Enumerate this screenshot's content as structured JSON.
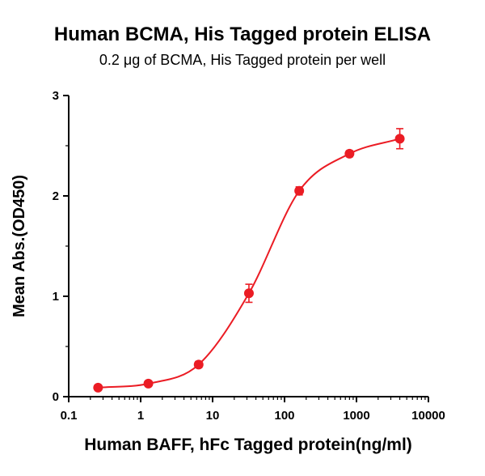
{
  "chart_data": {
    "type": "scatter",
    "title": "Human BCMA, His Tagged protein ELISA",
    "subtitle": "0.2 μg of BCMA, His Tagged protein per well",
    "xlabel": "Human BAFF, hFc Tagged protein(ng/ml)",
    "ylabel": "Mean Abs.(OD450)",
    "xscale": "log",
    "xlim": [
      0.1,
      10000
    ],
    "ylim": [
      0,
      3
    ],
    "grid": false,
    "legend": false,
    "xticks": [
      {
        "value": 0.1,
        "label": "0.1"
      },
      {
        "value": 1,
        "label": "1"
      },
      {
        "value": 10,
        "label": "10"
      },
      {
        "value": 100,
        "label": "100"
      },
      {
        "value": 1000,
        "label": "1000"
      },
      {
        "value": 10000,
        "label": "10000"
      }
    ],
    "yticks": [
      {
        "value": 0,
        "label": "0"
      },
      {
        "value": 1,
        "label": "1"
      },
      {
        "value": 2,
        "label": "2"
      },
      {
        "value": 3,
        "label": "3"
      }
    ],
    "y_minor_ticks": [
      0.5,
      1.5,
      2.5
    ],
    "series": [
      {
        "name": "BCMA-BAFF binding curve",
        "color": "#EB1C24",
        "marker": "circle",
        "x": [
          0.256,
          1.28,
          6.4,
          32,
          160,
          800,
          4000
        ],
        "y": [
          0.09,
          0.13,
          0.32,
          1.03,
          2.05,
          2.42,
          2.57
        ],
        "yerr": [
          0.02,
          0.02,
          0.03,
          0.09,
          0.04,
          0.03,
          0.1
        ]
      }
    ]
  }
}
